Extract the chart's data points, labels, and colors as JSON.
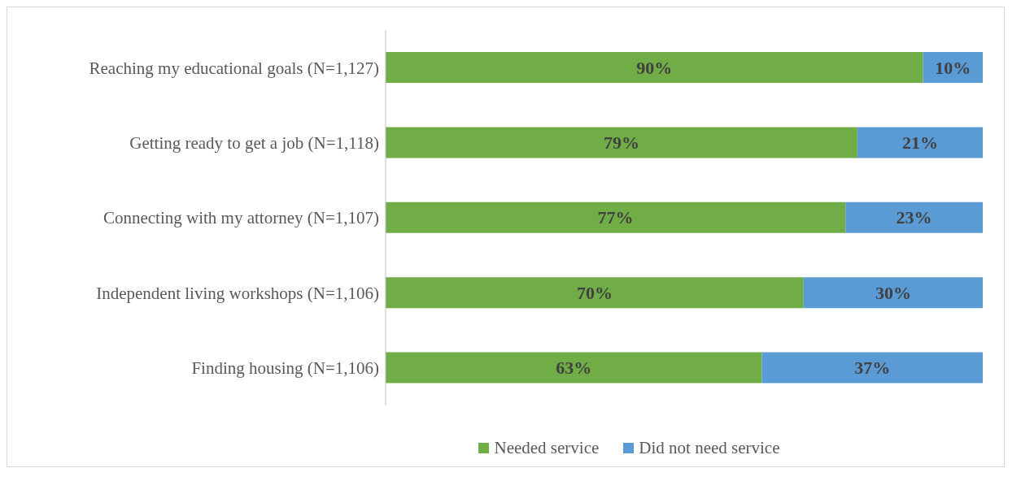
{
  "chart_data": {
    "type": "bar",
    "orientation": "horizontal",
    "stacked": true,
    "categories": [
      "Reaching my educational goals (N=1,127)",
      "Getting ready to get a job (N=1,118)",
      "Connecting with my attorney (N=1,107)",
      "Independent living workshops (N=1,106)",
      "Finding housing (N=1,106)"
    ],
    "series": [
      {
        "name": "Needed service",
        "color": "#70ad47",
        "values": [
          90,
          79,
          77,
          70,
          63
        ],
        "value_labels": [
          "90%",
          "79%",
          "77%",
          "70%",
          "63%"
        ]
      },
      {
        "name": "Did not need service",
        "color": "#5b9bd5",
        "values": [
          10,
          21,
          23,
          30,
          37
        ],
        "value_labels": [
          "10%",
          "21%",
          "23%",
          "30%",
          "37%"
        ]
      }
    ],
    "grid": false,
    "legend": "bottom"
  }
}
